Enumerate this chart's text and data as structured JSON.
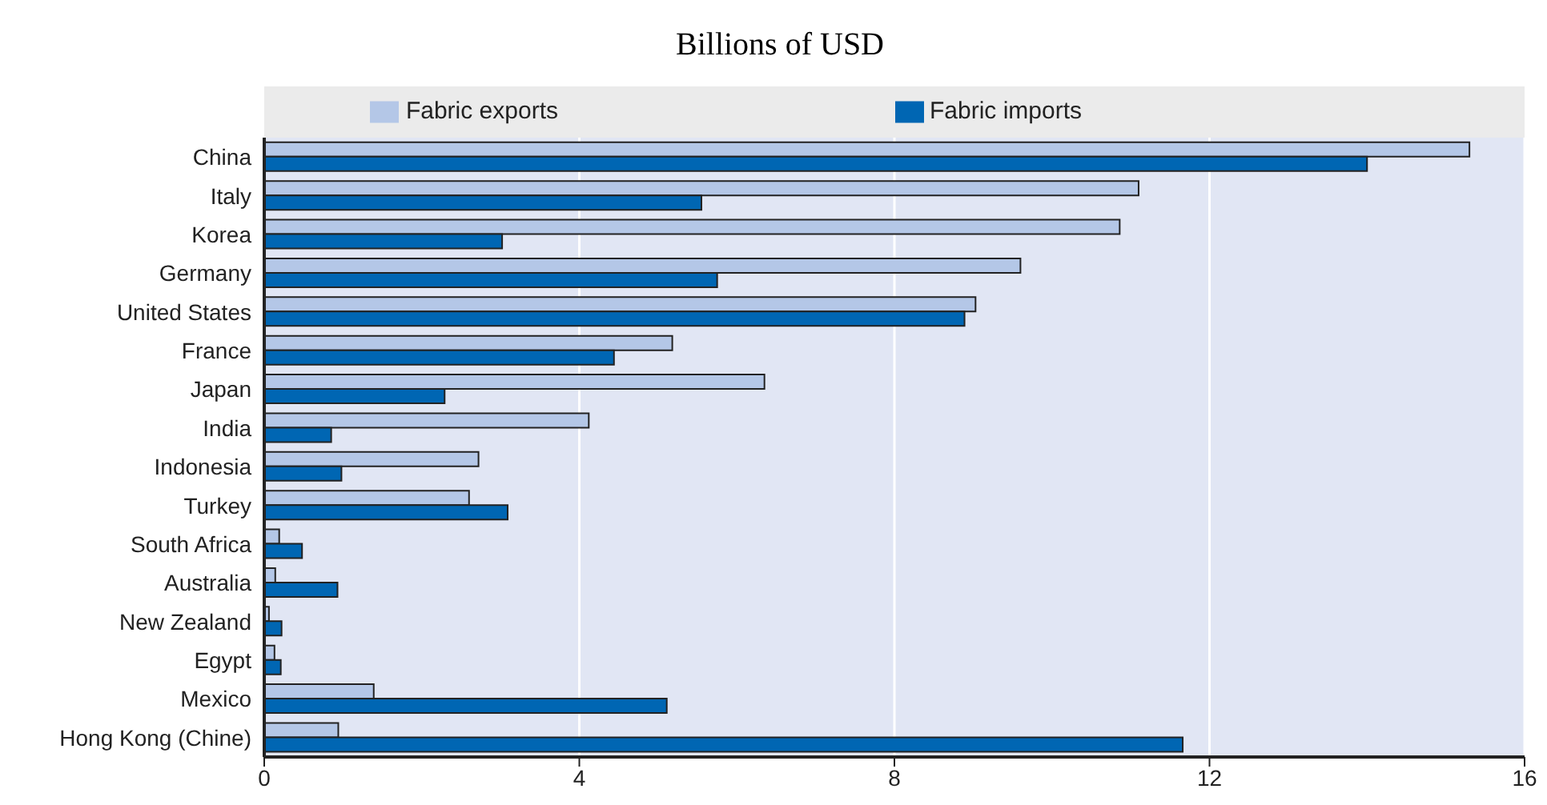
{
  "chart_data": {
    "type": "bar",
    "orientation": "horizontal",
    "title": "Billions of USD",
    "categories": [
      "China",
      "Italy",
      "Korea",
      "Germany",
      "United States",
      "France",
      "Japan",
      "India",
      "Indonesia",
      "Turkey",
      "South Africa",
      "Australia",
      "New Zealand",
      "Egypt",
      "Mexico",
      "Hong Kong (Chine)"
    ],
    "series": [
      {
        "name": "Fabric exports",
        "color": "#b4c7e7",
        "values": [
          15.3,
          11.1,
          10.86,
          9.6,
          9.03,
          5.18,
          6.35,
          4.12,
          2.72,
          2.6,
          0.19,
          0.14,
          0.06,
          0.13,
          1.39,
          0.94
        ]
      },
      {
        "name": "Fabric imports",
        "color": "#0066b3",
        "values": [
          14.0,
          5.55,
          3.02,
          5.75,
          8.89,
          4.44,
          2.29,
          0.85,
          0.98,
          3.09,
          0.48,
          0.93,
          0.22,
          0.21,
          5.11,
          11.66
        ]
      }
    ],
    "xlim": [
      0,
      16
    ],
    "xticks": [
      0,
      4,
      8,
      12,
      16
    ],
    "grid": "x",
    "legend": "top"
  }
}
